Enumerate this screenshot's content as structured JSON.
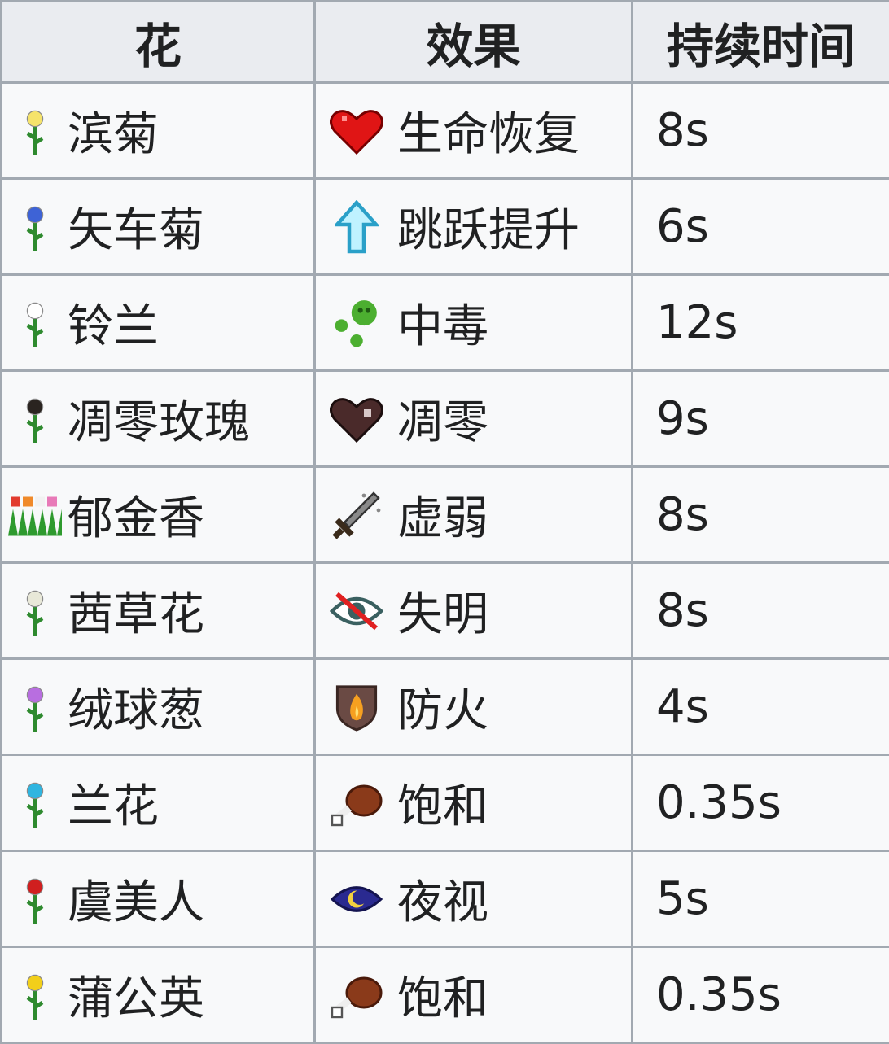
{
  "table": {
    "headers": [
      "花",
      "效果",
      "持续时间"
    ],
    "rows": [
      {
        "flower": "滨菊",
        "flower_icon": "oxeye-daisy-icon",
        "bloom_color": "#f5e36b",
        "effect": "生命恢复",
        "effect_icon": "heart-icon",
        "duration": "8s"
      },
      {
        "flower": "矢车菊",
        "flower_icon": "cornflower-icon",
        "bloom_color": "#3e63d6",
        "effect": "跳跃提升",
        "effect_icon": "up-arrow-icon",
        "duration": "6s"
      },
      {
        "flower": "铃兰",
        "flower_icon": "lily-of-the-valley-icon",
        "bloom_color": "#ffffff",
        "effect": "中毒",
        "effect_icon": "poison-bubbles-icon",
        "duration": "12s"
      },
      {
        "flower": "凋零玫瑰",
        "flower_icon": "wither-rose-icon",
        "bloom_color": "#2a2420",
        "effect": "凋零",
        "effect_icon": "withered-heart-icon",
        "duration": "9s"
      },
      {
        "flower": "郁金香",
        "flower_icon": "tulips-icon",
        "bloom_color": "#e23b2e",
        "effect": "虚弱",
        "effect_icon": "sword-icon",
        "duration": "8s"
      },
      {
        "flower": "茜草花",
        "flower_icon": "azure-bluet-icon",
        "bloom_color": "#e8e8d8",
        "effect": "失明",
        "effect_icon": "crossed-eye-icon",
        "duration": "8s"
      },
      {
        "flower": "绒球葱",
        "flower_icon": "allium-icon",
        "bloom_color": "#b86ee0",
        "effect": "防火",
        "effect_icon": "fire-shield-icon",
        "duration": "4s"
      },
      {
        "flower": "兰花",
        "flower_icon": "blue-orchid-icon",
        "bloom_color": "#2fb5e0",
        "effect": "饱和",
        "effect_icon": "meat-icon",
        "duration": "0.35s"
      },
      {
        "flower": "虞美人",
        "flower_icon": "poppy-icon",
        "bloom_color": "#d01f1f",
        "effect": "夜视",
        "effect_icon": "night-eye-icon",
        "duration": "5s"
      },
      {
        "flower": "蒲公英",
        "flower_icon": "dandelion-icon",
        "bloom_color": "#f2cf1a",
        "effect": "饱和",
        "effect_icon": "meat-icon",
        "duration": "0.35s"
      }
    ]
  }
}
